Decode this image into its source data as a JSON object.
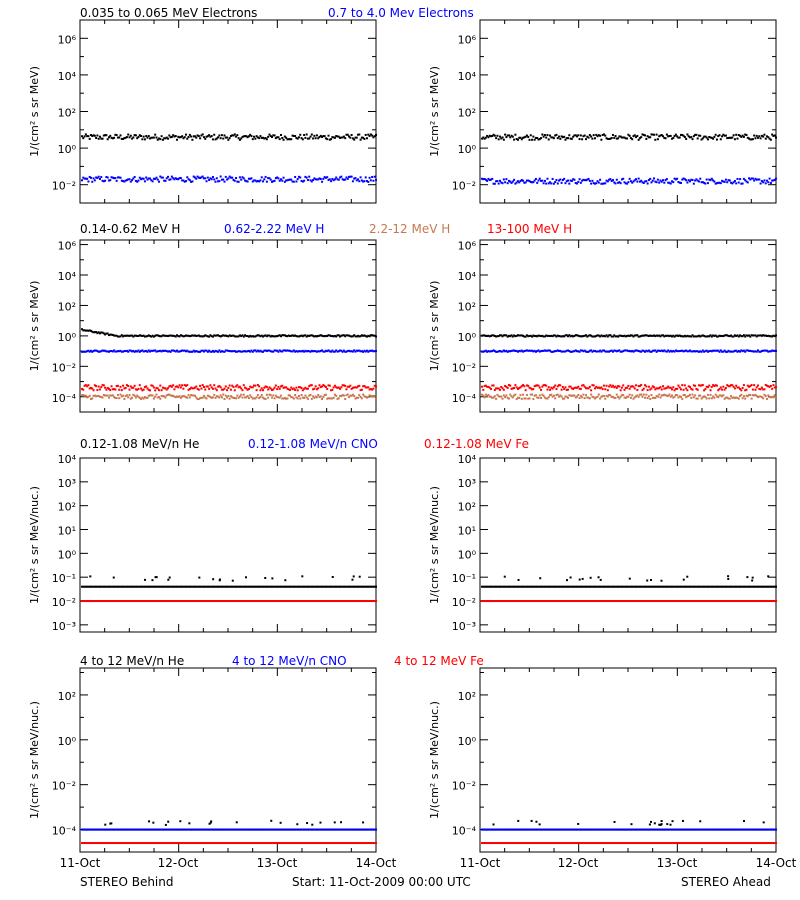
{
  "colors": {
    "black": "#000000",
    "blue": "#0000ff",
    "red": "#ff0000",
    "tan": "#c87850"
  },
  "footer": {
    "left": "STEREO Behind",
    "center": "Start: 11-Oct-2009 00:00 UTC",
    "right": "STEREO Ahead"
  },
  "chart_data": [
    {
      "type": "scatter",
      "title": "",
      "legend": [
        "0.035 to 0.065 MeV Electrons",
        "0.7 to 4.0 Mev Electrons"
      ],
      "legend_colors": [
        "#000000",
        "#0000ff"
      ],
      "ylabel_behind": "1/(cm² s sr MeV)",
      "ylabel_ahead": "1/(cm² s sr MeV)",
      "yscale": "log",
      "ylim_exp": [
        -3,
        7
      ],
      "yticks": [
        "10⁻²",
        "10⁰",
        "10²",
        "10⁴",
        "10⁶"
      ],
      "ytick_exps": [
        -2,
        0,
        2,
        4,
        6
      ],
      "x_categories": [
        "11-Oct",
        "12-Oct",
        "13-Oct",
        "14-Oct"
      ],
      "series": [
        {
          "name": "0.035 to 0.065 MeV Electrons",
          "color": "#000000",
          "behind_log10": 0.6,
          "ahead_log10": 0.6,
          "scatter": 0.15
        },
        {
          "name": "0.7 to 4.0 Mev Electrons",
          "color": "#0000ff",
          "behind_log10": -1.7,
          "ahead_log10": -1.8,
          "scatter": 0.15
        }
      ]
    },
    {
      "type": "scatter",
      "title": "",
      "legend": [
        "0.14-0.62 MeV H",
        "0.62-2.22 MeV H",
        "2.2-12 MeV H",
        "13-100 MeV H"
      ],
      "legend_colors": [
        "#000000",
        "#0000ff",
        "#c87850",
        "#ff0000"
      ],
      "ylabel_behind": "1/(cm² s sr MeV)",
      "ylabel_ahead": "1/(cm² s sr MeV)",
      "yscale": "log",
      "ylim_exp": [
        -5,
        6.3
      ],
      "yticks": [
        "10⁻⁴",
        "10⁻²",
        "10⁰",
        "10²",
        "10⁴",
        "10⁶"
      ],
      "ytick_exps": [
        -4,
        -2,
        0,
        2,
        4,
        6
      ],
      "x_categories": [
        "11-Oct",
        "12-Oct",
        "13-Oct",
        "14-Oct"
      ],
      "series": [
        {
          "name": "0.14-0.62 MeV H",
          "color": "#000000",
          "behind_log10": 0.0,
          "ahead_log10": 0.0,
          "scatter": 0.05,
          "behind_start_log10": 0.4
        },
        {
          "name": "0.62-2.22 MeV H",
          "color": "#0000ff",
          "behind_log10": -1.0,
          "ahead_log10": -1.0,
          "scatter": 0.05
        },
        {
          "name": "2.2-12 MeV H",
          "color": "#c87850",
          "behind_log10": -4.0,
          "ahead_log10": -4.0,
          "scatter": 0.15
        },
        {
          "name": "13-100 MeV H",
          "color": "#ff0000",
          "behind_log10": -3.4,
          "ahead_log10": -3.4,
          "scatter": 0.18
        }
      ]
    },
    {
      "type": "scatter",
      "title": "",
      "legend": [
        "0.12-1.08 MeV/n He",
        "0.12-1.08 MeV/n CNO",
        "0.12-1.08 MeV Fe"
      ],
      "legend_colors": [
        "#000000",
        "#0000ff",
        "#ff0000"
      ],
      "ylabel_behind": "1/(cm² s sr MeV/nuc.)",
      "ylabel_ahead": "1/(cm² s sr MeV/nuc.)",
      "yscale": "log",
      "ylim_exp": [
        -3.3,
        4
      ],
      "yticks": [
        "10⁻³",
        "10⁻²",
        "10⁻¹",
        "10⁰",
        "10¹",
        "10²",
        "10³",
        "10⁴"
      ],
      "ytick_exps": [
        -3,
        -2,
        -1,
        0,
        1,
        2,
        3,
        4
      ],
      "x_categories": [
        "11-Oct",
        "12-Oct",
        "13-Oct",
        "14-Oct"
      ],
      "series": [
        {
          "name": "0.12-1.08 MeV/n He",
          "color": "#000000",
          "behind_log10": -1.4,
          "ahead_log10": -1.4,
          "scatter": 0.0,
          "sparse_log10": -1.05
        },
        {
          "name": "0.12-1.08 MeV/n CNO",
          "color": "#0000ff",
          "behind_log10": -2.0,
          "ahead_log10": -2.0,
          "scatter": 0.0
        },
        {
          "name": "0.12-1.08 MeV Fe",
          "color": "#ff0000",
          "behind_log10": -2.0,
          "ahead_log10": -2.0,
          "scatter": 0.0
        }
      ]
    },
    {
      "type": "scatter",
      "title": "",
      "legend": [
        "4 to 12 MeV/n He",
        "4 to 12 MeV/n CNO",
        "4 to 12 MeV Fe"
      ],
      "legend_colors": [
        "#000000",
        "#0000ff",
        "#ff0000"
      ],
      "ylabel_behind": "1/(cm² s sr MeV/nuc.)",
      "ylabel_ahead": "1/(cm² s sr MeV/nuc.)",
      "yscale": "log",
      "ylim_exp": [
        -5,
        3.2
      ],
      "yticks": [
        "10⁻⁴",
        "10⁻²",
        "10⁰",
        "10²"
      ],
      "ytick_exps": [
        -4,
        -2,
        0,
        2
      ],
      "x_categories": [
        "11-Oct",
        "12-Oct",
        "13-Oct",
        "14-Oct"
      ],
      "series": [
        {
          "name": "4 to 12 MeV/n He",
          "color": "#000000",
          "behind_log10": -4.0,
          "ahead_log10": -4.0,
          "scatter": 0.0,
          "sparse_log10": -3.7
        },
        {
          "name": "4 to 12 MeV/n CNO",
          "color": "#0000ff",
          "behind_log10": -4.0,
          "ahead_log10": -4.0,
          "scatter": 0.0
        },
        {
          "name": "4 to 12 MeV Fe",
          "color": "#ff0000",
          "behind_log10": -4.6,
          "ahead_log10": -4.6,
          "scatter": 0.0
        }
      ]
    }
  ]
}
